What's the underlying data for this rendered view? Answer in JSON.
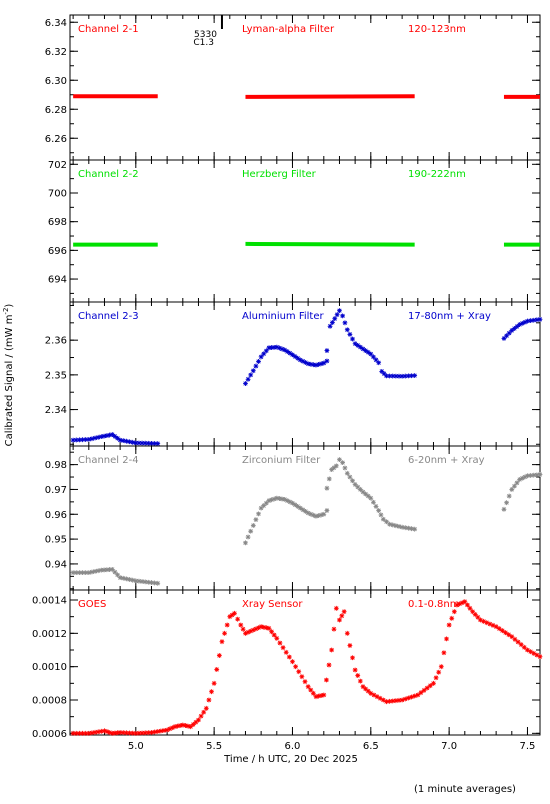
{
  "chart_data": [
    {
      "type": "scatter",
      "series": [
        {
          "name": "Channel 2-1",
          "color": "#ff0000",
          "segments": [
            {
              "x0": 4.6,
              "x1": 5.14,
              "y0": 6.289,
              "y1": 6.289
            },
            {
              "x0": 5.7,
              "x1": 6.78,
              "y0": 6.2885,
              "y1": 6.289
            },
            {
              "x0": 7.35,
              "x1": 7.58,
              "y0": 6.2885,
              "y1": 6.2885
            }
          ]
        }
      ],
      "labels": {
        "channel": "Channel 2-1",
        "filter": "Lyman-alpha Filter",
        "band": "120-123nm",
        "color": "#ff0000"
      },
      "marker": {
        "x": 5.55,
        "line1": "5330",
        "line2": "C1.3"
      },
      "ylim": [
        6.245,
        6.345
      ],
      "yticks": [
        6.26,
        6.28,
        6.3,
        6.32,
        6.34
      ],
      "ytick_labels": [
        "6.26",
        "6.28",
        "6.30",
        "6.32",
        "6.34"
      ]
    },
    {
      "type": "scatter",
      "series": [
        {
          "name": "Channel 2-2",
          "color": "#00e000",
          "segments": [
            {
              "x0": 4.6,
              "x1": 5.14,
              "y0": 696.4,
              "y1": 696.4
            },
            {
              "x0": 5.7,
              "x1": 6.78,
              "y0": 696.45,
              "y1": 696.4
            },
            {
              "x0": 7.35,
              "x1": 7.58,
              "y0": 696.4,
              "y1": 696.4
            }
          ]
        }
      ],
      "labels": {
        "channel": "Channel 2-2",
        "filter": "Herzberg Filter",
        "band": "190-222nm",
        "color": "#00e000"
      },
      "ylim": [
        692.4,
        702.3
      ],
      "yticks": [
        694,
        696,
        698,
        700,
        702
      ],
      "ytick_labels": [
        "694",
        "696",
        "698",
        "700",
        "702"
      ]
    },
    {
      "type": "scatter",
      "series": [
        {
          "name": "Channel 2-3",
          "color": "#0000cc",
          "points": [
            [
              4.6,
              2.3312
            ],
            [
              4.7,
              2.3314
            ],
            [
              4.78,
              2.3322
            ],
            [
              4.85,
              2.3328
            ],
            [
              4.9,
              2.3312
            ],
            [
              5.0,
              2.3304
            ],
            [
              5.14,
              2.3302
            ],
            [
              5.7,
              2.3475
            ],
            [
              5.75,
              2.3512
            ],
            [
              5.8,
              2.3552
            ],
            [
              5.85,
              2.3578
            ],
            [
              5.9,
              2.358
            ],
            [
              5.95,
              2.3572
            ],
            [
              6.0,
              2.3558
            ],
            [
              6.05,
              2.3543
            ],
            [
              6.1,
              2.3532
            ],
            [
              6.15,
              2.3528
            ],
            [
              6.2,
              2.3534
            ],
            [
              6.22,
              2.354
            ],
            [
              6.22,
              2.357
            ],
            [
              6.24,
              2.364
            ],
            [
              6.27,
              2.3662
            ],
            [
              6.3,
              2.3685
            ],
            [
              6.32,
              2.367
            ],
            [
              6.35,
              2.363
            ],
            [
              6.4,
              2.359
            ],
            [
              6.45,
              2.3575
            ],
            [
              6.5,
              2.356
            ],
            [
              6.55,
              2.3535
            ],
            [
              6.57,
              2.351
            ],
            [
              6.6,
              2.3497
            ],
            [
              6.7,
              2.3496
            ],
            [
              6.78,
              2.3498
            ],
            [
              7.35,
              2.3605
            ],
            [
              7.4,
              2.3628
            ],
            [
              7.45,
              2.3645
            ],
            [
              7.5,
              2.3655
            ],
            [
              7.58,
              2.366
            ]
          ]
        }
      ],
      "labels": {
        "channel": "Channel 2-3",
        "filter": "Aluminium Filter",
        "band": "17-80nm + Xray",
        "color": "#0000cc"
      },
      "ylim": [
        2.3295,
        2.371
      ],
      "yticks": [
        2.34,
        2.35,
        2.36
      ],
      "ytick_labels": [
        "2.34",
        "2.35",
        "2.36"
      ]
    },
    {
      "type": "scatter",
      "series": [
        {
          "name": "Channel 2-4",
          "color": "#888888",
          "points": [
            [
              4.6,
              0.9365
            ],
            [
              4.7,
              0.9365
            ],
            [
              4.78,
              0.9375
            ],
            [
              4.85,
              0.9378
            ],
            [
              4.9,
              0.9345
            ],
            [
              5.0,
              0.9332
            ],
            [
              5.14,
              0.9322
            ],
            [
              5.7,
              0.9485
            ],
            [
              5.75,
              0.9555
            ],
            [
              5.8,
              0.9625
            ],
            [
              5.85,
              0.9655
            ],
            [
              5.9,
              0.9665
            ],
            [
              5.95,
              0.966
            ],
            [
              6.0,
              0.9645
            ],
            [
              6.05,
              0.9625
            ],
            [
              6.1,
              0.9605
            ],
            [
              6.15,
              0.9592
            ],
            [
              6.2,
              0.96
            ],
            [
              6.22,
              0.9615
            ],
            [
              6.22,
              0.9705
            ],
            [
              6.25,
              0.978
            ],
            [
              6.28,
              0.9795
            ],
            [
              6.3,
              0.982
            ],
            [
              6.32,
              0.9808
            ],
            [
              6.35,
              0.9765
            ],
            [
              6.4,
              0.972
            ],
            [
              6.45,
              0.969
            ],
            [
              6.5,
              0.9665
            ],
            [
              6.55,
              0.9615
            ],
            [
              6.58,
              0.958
            ],
            [
              6.62,
              0.956
            ],
            [
              6.7,
              0.9548
            ],
            [
              6.78,
              0.954
            ],
            [
              7.35,
              0.962
            ],
            [
              7.4,
              0.97
            ],
            [
              7.45,
              0.974
            ],
            [
              7.5,
              0.9755
            ],
            [
              7.58,
              0.976
            ]
          ]
        }
      ],
      "labels": {
        "channel": "Channel 2-4",
        "filter": "Zirconium Filter",
        "band": "6-20nm + Xray",
        "color": "#888888"
      },
      "ylim": [
        0.9295,
        0.9875
      ],
      "yticks": [
        0.94,
        0.95,
        0.96,
        0.97,
        0.98
      ],
      "ytick_labels": [
        "0.94",
        "0.95",
        "0.96",
        "0.97",
        "0.98"
      ]
    },
    {
      "type": "scatter",
      "series": [
        {
          "name": "GOES",
          "color": "#ff0000",
          "points": [
            [
              4.6,
              0.0006
            ],
            [
              4.7,
              0.0006
            ],
            [
              4.8,
              0.000615
            ],
            [
              4.85,
              0.0006
            ],
            [
              4.9,
              0.000605
            ],
            [
              5.0,
              0.0006
            ],
            [
              5.1,
              0.000605
            ],
            [
              5.2,
              0.00062
            ],
            [
              5.25,
              0.00064
            ],
            [
              5.3,
              0.00065
            ],
            [
              5.35,
              0.00064
            ],
            [
              5.4,
              0.00068
            ],
            [
              5.45,
              0.00075
            ],
            [
              5.5,
              0.0009
            ],
            [
              5.55,
              0.00115
            ],
            [
              5.6,
              0.0013
            ],
            [
              5.63,
              0.00132
            ],
            [
              5.67,
              0.00125
            ],
            [
              5.7,
              0.0012
            ],
            [
              5.75,
              0.00122
            ],
            [
              5.8,
              0.00124
            ],
            [
              5.85,
              0.00123
            ],
            [
              5.9,
              0.00117
            ],
            [
              6.0,
              0.00103
            ],
            [
              6.1,
              0.00088
            ],
            [
              6.15,
              0.00082
            ],
            [
              6.2,
              0.00083
            ],
            [
              6.25,
              0.0011
            ],
            [
              6.28,
              0.00135
            ],
            [
              6.3,
              0.00128
            ],
            [
              6.33,
              0.00133
            ],
            [
              6.35,
              0.0012
            ],
            [
              6.4,
              0.00098
            ],
            [
              6.45,
              0.00088
            ],
            [
              6.5,
              0.00084
            ],
            [
              6.6,
              0.00079
            ],
            [
              6.7,
              0.0008
            ],
            [
              6.8,
              0.00083
            ],
            [
              6.9,
              0.0009
            ],
            [
              6.95,
              0.001
            ],
            [
              7.0,
              0.00125
            ],
            [
              7.05,
              0.00137
            ],
            [
              7.1,
              0.00139
            ],
            [
              7.15,
              0.00133
            ],
            [
              7.2,
              0.00128
            ],
            [
              7.3,
              0.00124
            ],
            [
              7.4,
              0.00118
            ],
            [
              7.5,
              0.0011
            ],
            [
              7.58,
              0.00106
            ]
          ]
        }
      ],
      "labels": {
        "channel": "GOES",
        "filter": "Xray Sensor",
        "band": "0.1-0.8nm",
        "color": "#ff0000"
      },
      "ylim": [
        0.00059,
        0.00146
      ],
      "yticks": [
        0.0006,
        0.0008,
        0.001,
        0.0012,
        0.0014
      ],
      "ytick_labels": [
        "0.0006",
        "0.0008",
        "0.0010",
        "0.0012",
        "0.0014"
      ]
    }
  ],
  "xaxis": {
    "xlim": [
      4.58,
      7.58
    ],
    "ticks": [
      5.0,
      5.5,
      6.0,
      6.5,
      7.0,
      7.5
    ],
    "tick_labels": [
      "5.0",
      "5.5",
      "6.0",
      "6.5",
      "7.0",
      "7.5"
    ],
    "label": "Time / h UTC, 20 Dec 2025"
  },
  "ylabel": "Calibrated Signal / (mW m",
  "ylabel_exp": "-2",
  "ylabel_end": ")",
  "footnote": "(1 minute averages)"
}
